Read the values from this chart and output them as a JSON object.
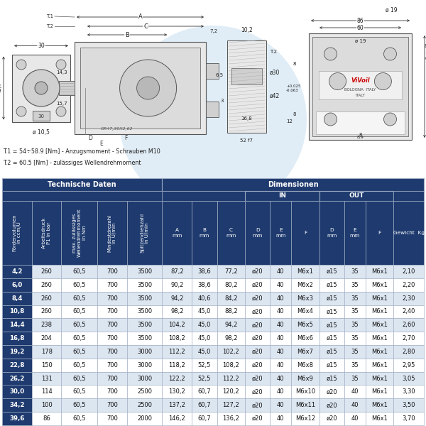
{
  "title_notes": [
    "T.1 = 54÷58.9 [Nm] - Anzugsmoment - Schrauben M10",
    "T.2 = 60.5 [Nm] - zulässiges Wellendrehmoment"
  ],
  "header_bg": "#1e3a6e",
  "header_text_color": "#ffffff",
  "row_bg_even": "#dce6f1",
  "row_bg_odd": "#ffffff",
  "first_col_bg": "#1e3a6e",
  "tech_daten_label": "Technische Daten",
  "dimensionen_label": "Dimensionen",
  "in_label": "IN",
  "out_label": "OUT",
  "col_headers": [
    "Fördervolumen\nin ccm/U",
    "Arbeitsdruck\nP1 in bar",
    "max. zulässiges\nWellendrehmoment\nin Nm",
    "Mindestdrezahl\nin U/min",
    "Spitzendrehzahl\nin U/min",
    "A\nmm",
    "B\nmm",
    "C\nmm",
    "D\nmm",
    "E\nmm",
    "F",
    "D\nmm",
    "E\nmm",
    "F",
    "Gewicht  Kg"
  ],
  "rows": [
    [
      "4,2",
      "260",
      "60,5",
      "700",
      "3500",
      "87,2",
      "38,6",
      "77,2",
      "ø20",
      "40",
      "M6x1",
      "ø15",
      "35",
      "M6x1",
      "2,10"
    ],
    [
      "6,0",
      "260",
      "60,5",
      "700",
      "3500",
      "90,2",
      "38,6",
      "80,2",
      "ø20",
      "40",
      "M6x2",
      "ø15",
      "35",
      "M6x1",
      "2,20"
    ],
    [
      "8,4",
      "260",
      "60,5",
      "700",
      "3500",
      "94,2",
      "40,6",
      "84,2",
      "ø20",
      "40",
      "M6x3",
      "ø15",
      "35",
      "M6x1",
      "2,30"
    ],
    [
      "10,8",
      "260",
      "60,5",
      "700",
      "3500",
      "98,2",
      "45,0",
      "88,2",
      "ø20",
      "40",
      "M6x4",
      "ø15",
      "35",
      "M6x1",
      "2,40"
    ],
    [
      "14,4",
      "238",
      "60,5",
      "700",
      "3500",
      "104,2",
      "45,0",
      "94,2",
      "ø20",
      "40",
      "M6x5",
      "ø15",
      "35",
      "M6x1",
      "2,60"
    ],
    [
      "16,8",
      "204",
      "60,5",
      "700",
      "3500",
      "108,2",
      "45,0",
      "98,2",
      "ø20",
      "40",
      "M6x6",
      "ø15",
      "35",
      "M6x1",
      "2,70"
    ],
    [
      "19,2",
      "178",
      "60,5",
      "700",
      "3000",
      "112,2",
      "45,0",
      "102,2",
      "ø20",
      "40",
      "M6x7",
      "ø15",
      "35",
      "M6x1",
      "2,80"
    ],
    [
      "22,8",
      "150",
      "60,5",
      "700",
      "3000",
      "118,2",
      "52,5",
      "108,2",
      "ø20",
      "40",
      "M6x8",
      "ø15",
      "35",
      "M6x1",
      "2,95"
    ],
    [
      "26,2",
      "131",
      "60,5",
      "700",
      "3000",
      "122,2",
      "52,5",
      "112,2",
      "ø20",
      "40",
      "M6x9",
      "ø15",
      "35",
      "M6x1",
      "3,05"
    ],
    [
      "30,0",
      "114",
      "60,5",
      "700",
      "2500",
      "130,2",
      "60,7",
      "120,2",
      "ø20",
      "40",
      "M6x10",
      "ø20",
      "40",
      "M6x1",
      "3,30"
    ],
    [
      "34,2",
      "100",
      "60,5",
      "700",
      "2500",
      "137,2",
      "60,7",
      "127,2",
      "ø20",
      "40",
      "M6x11",
      "ø20",
      "40",
      "M6x1",
      "3,50"
    ],
    [
      "39,6",
      "86",
      "60,5",
      "700",
      "2000",
      "146,2",
      "60,7",
      "136,2",
      "ø20",
      "40",
      "M6x12",
      "ø20",
      "40",
      "M6x1",
      "3,70"
    ]
  ],
  "figure_bg": "#ffffff",
  "watermark_color": "#c8dff0",
  "diagram_line_color": "#555555",
  "diagram_fill_light": "#e8e8e8",
  "diagram_fill_mid": "#d0d0d0",
  "diagram_fill_dark": "#b8b8b8"
}
